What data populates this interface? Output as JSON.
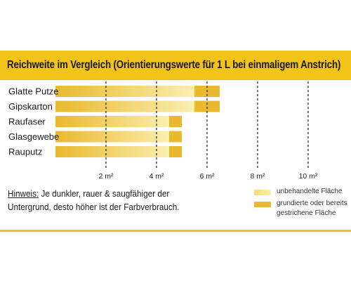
{
  "chart_data": {
    "type": "bar",
    "title": "Reichweite im Vergleich (Orientierungswerte für 1 L bei einmaligem Anstrich)",
    "categories": [
      "Glatte Putze",
      "Gipskarton",
      "Raufaser",
      "Glasgewebe",
      "Rauputz"
    ],
    "series": [
      {
        "name": "unbehandelte Fläche",
        "values": [
          5.5,
          5.5,
          4.5,
          4.5,
          4.5
        ]
      },
      {
        "name": "grundierte oder bereits gestrichene Fläche",
        "values": [
          6.5,
          6.5,
          5.0,
          5.0,
          5.0
        ]
      }
    ],
    "xticks": [
      "2 m²",
      "4 m²",
      "6 m²",
      "8 m²",
      "10 m²"
    ],
    "xtick_values": [
      2,
      4,
      6,
      8,
      10
    ],
    "xlim": [
      0,
      10
    ],
    "grid": "dashed vertical",
    "colors": {
      "bar_light": "#f6dd6e",
      "bar_dark": "#eab92d",
      "accent": "#f2c41a"
    }
  },
  "note": {
    "hint_label": "Hinweis:",
    "text": " Je dunkler, rauer & saugfähiger der Untergrund, desto höher ist der Farbverbrauch."
  },
  "legend": {
    "untreated": "unbehandelte Fläche",
    "primed": "grundierte oder bereits gestrichene Fläche"
  }
}
